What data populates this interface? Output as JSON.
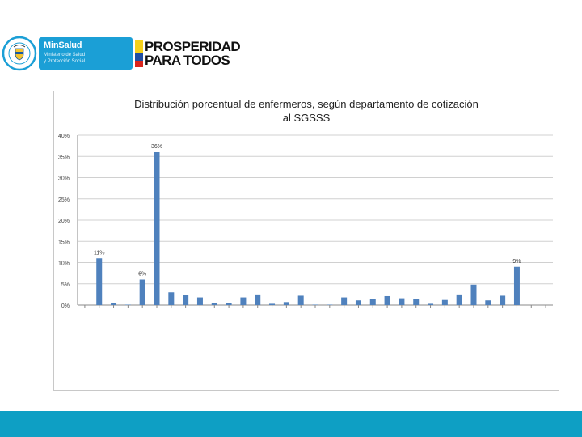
{
  "header": {
    "minsalud_name": "MinSalud",
    "minsalud_line1": "Ministerio de Salud",
    "minsalud_line2": "y Protección Social",
    "prosperidad_line1": "PROSPERIDAD",
    "prosperidad_line2": "PARA TODOS"
  },
  "colors": {
    "bar": "#4f81bd",
    "brand_blue": "#1b9fd6",
    "footer": "#0e9fc4"
  },
  "chart_data": {
    "type": "bar",
    "title_line1": "Distribución porcentual de enfermeros, según departamento de cotización",
    "title_line2": "al SGSSS",
    "ylim": [
      0,
      40
    ],
    "yticks": [
      "0%",
      "5%",
      "10%",
      "15%",
      "20%",
      "25%",
      "30%",
      "35%",
      "40%"
    ],
    "grid": true,
    "values": [
      0,
      11,
      0.5,
      0.1,
      6,
      36,
      3,
      2.3,
      1.8,
      0.4,
      0.4,
      1.8,
      2.5,
      0.3,
      0.7,
      2.2,
      0.1,
      0.1,
      1.8,
      1.1,
      1.5,
      2.1,
      1.6,
      1.4,
      0.3,
      1.2,
      2.5,
      4.8,
      1.1,
      2.2,
      9,
      0,
      0
    ],
    "data_labels": [
      {
        "index": 1,
        "label": "11%"
      },
      {
        "index": 4,
        "label": "6%"
      },
      {
        "index": 5,
        "label": "36%"
      },
      {
        "index": 30,
        "label": "9%"
      }
    ]
  }
}
